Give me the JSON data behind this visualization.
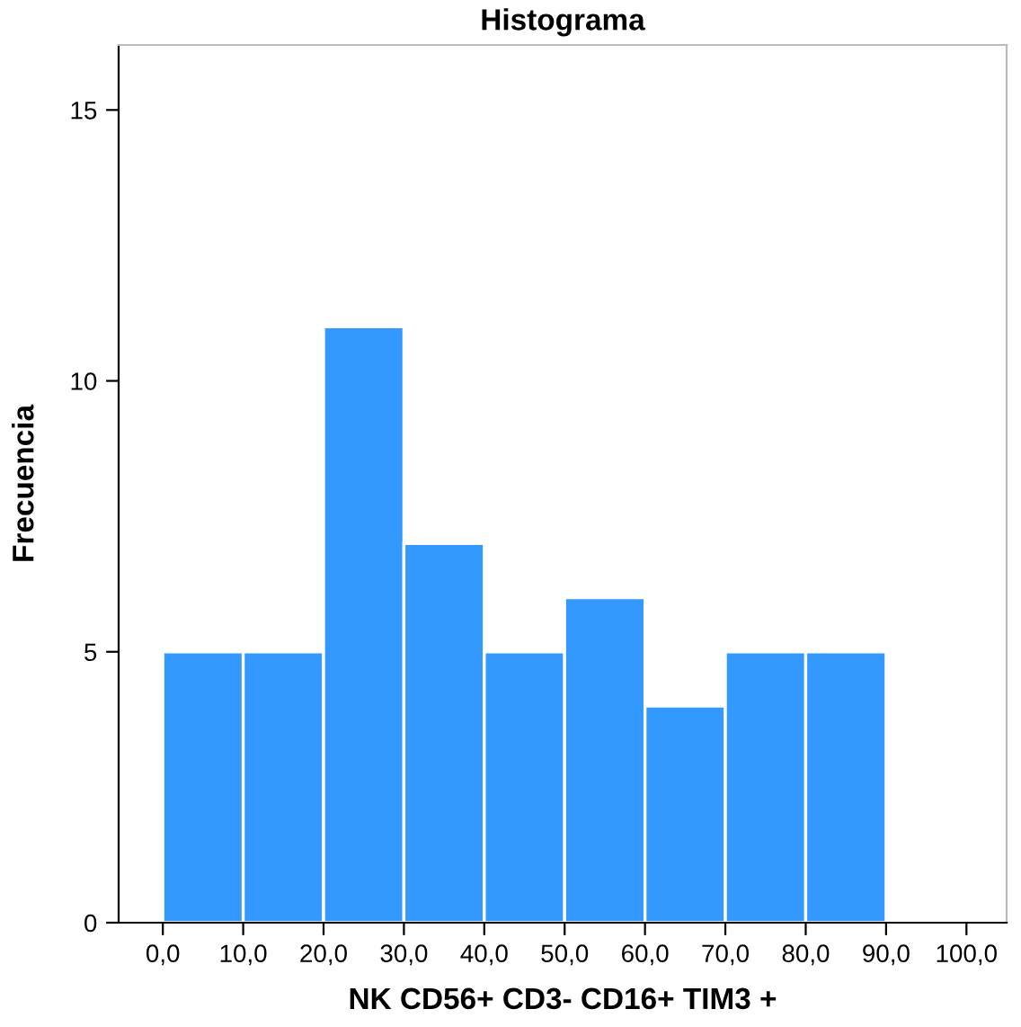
{
  "chart_data": {
    "type": "histogram",
    "title": "Histograma",
    "xlabel": "NK CD56+ CD3- CD16+ TIM3 +",
    "ylabel": "Frecuencia",
    "bins": [
      0,
      10,
      20,
      30,
      40,
      50,
      60,
      70,
      80,
      90
    ],
    "values": [
      5,
      5,
      11,
      7,
      5,
      6,
      4,
      5,
      5
    ],
    "color": "#3399ff",
    "xlim": [
      -5.5,
      105
    ],
    "ylim": [
      0,
      16.2
    ],
    "xticks": [
      {
        "value": 0,
        "label": "0,0"
      },
      {
        "value": 10,
        "label": "10,0"
      },
      {
        "value": 20,
        "label": "20,0"
      },
      {
        "value": 30,
        "label": "30,0"
      },
      {
        "value": 40,
        "label": "40,0"
      },
      {
        "value": 50,
        "label": "50,0"
      },
      {
        "value": 60,
        "label": "60,0"
      },
      {
        "value": 70,
        "label": "70,0"
      },
      {
        "value": 80,
        "label": "80,0"
      },
      {
        "value": 90,
        "label": "90,0"
      },
      {
        "value": 100,
        "label": "100,0"
      }
    ],
    "yticks": [
      0,
      5,
      10,
      15
    ],
    "grid": false,
    "legend": false
  }
}
